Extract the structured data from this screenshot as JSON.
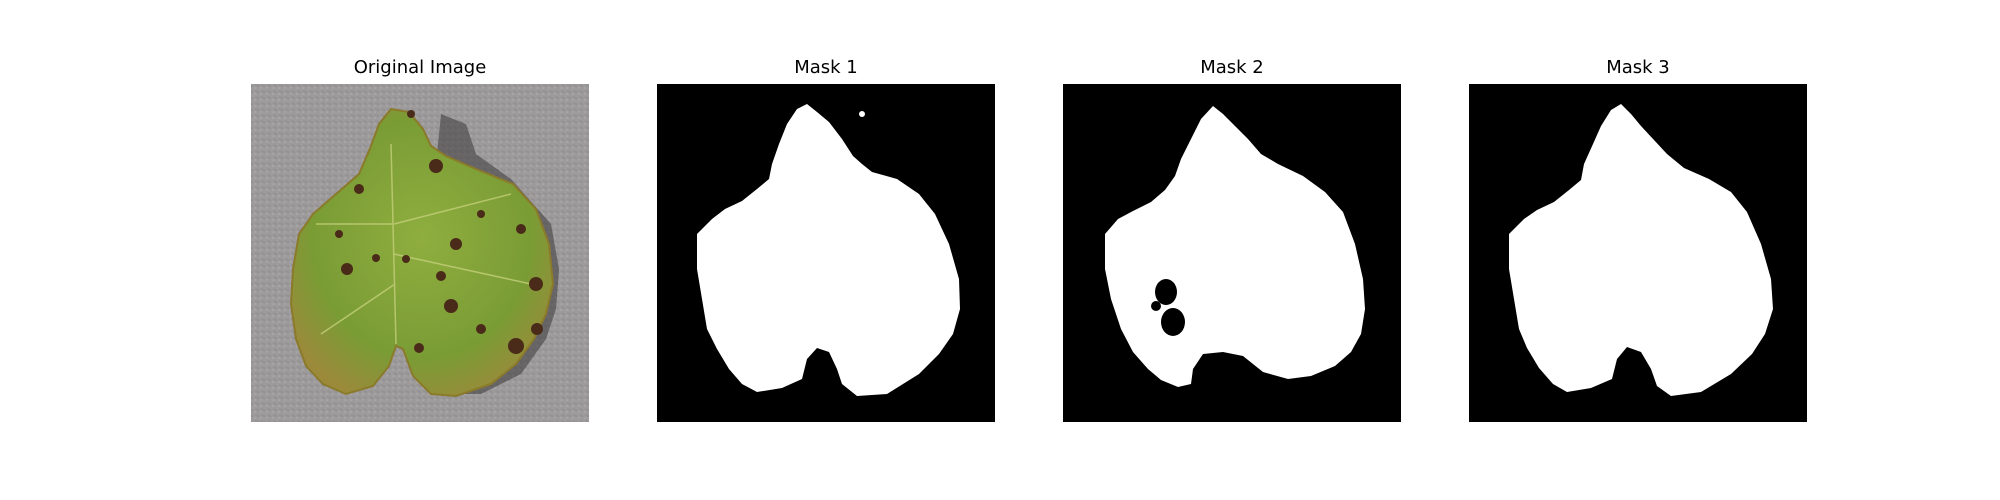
{
  "figure": {
    "panels": [
      {
        "title": "Original Image",
        "kind": "photo"
      },
      {
        "title": "Mask 1",
        "kind": "mask"
      },
      {
        "title": "Mask 2",
        "kind": "mask"
      },
      {
        "title": "Mask 3",
        "kind": "mask"
      }
    ]
  },
  "colors": {
    "background": "#ffffff",
    "mask_fg": "#ffffff",
    "mask_bg": "#000000",
    "leaf_green": "#7fa03a",
    "ground_gray": "#9a9898",
    "lesion_brown": "#4a2a18"
  }
}
